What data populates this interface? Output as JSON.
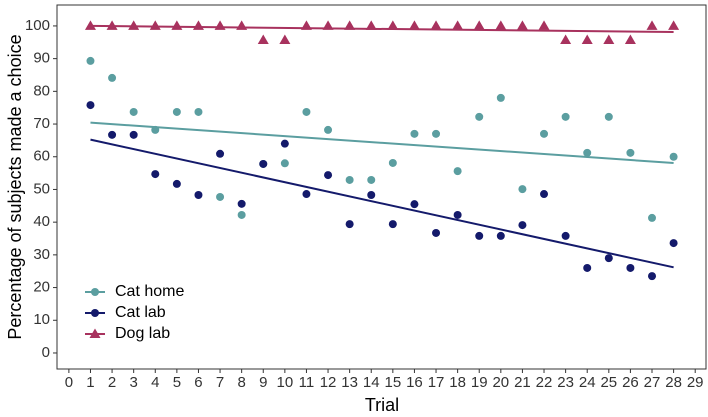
{
  "chart_data": {
    "type": "scatter",
    "x_label": "Trial",
    "y_label": "Percentage of subjects made a choice",
    "x": [
      1,
      2,
      3,
      4,
      5,
      6,
      7,
      8,
      9,
      10,
      11,
      12,
      13,
      14,
      15,
      16,
      17,
      18,
      19,
      20,
      21,
      22,
      23,
      24,
      25,
      26,
      27,
      28
    ],
    "series": [
      {
        "name": "Cat home",
        "color": "#5b9ea0",
        "marker": "circle",
        "values": [
          89.3,
          84.1,
          73.7,
          68.2,
          73.7,
          73.7,
          47.7,
          42.2,
          57.8,
          58,
          73.7,
          68.2,
          52.9,
          52.9,
          58.1,
          67,
          67,
          55.6,
          72.2,
          78,
          50.1,
          67,
          72.2,
          61.2,
          72.2,
          61.2,
          41.3,
          60
        ]
      },
      {
        "name": "Cat lab",
        "color": "#141a6b",
        "marker": "circle",
        "values": [
          75.8,
          66.7,
          66.7,
          54.7,
          51.7,
          48.3,
          60.9,
          45.6,
          57.8,
          64,
          48.6,
          54.4,
          39.4,
          48.3,
          39.4,
          45.5,
          36.7,
          42.2,
          35.8,
          35.8,
          39.1,
          48.6,
          35.8,
          26,
          29,
          26,
          23.5,
          33.6
        ]
      },
      {
        "name": "Dog lab",
        "color": "#a8325e",
        "marker": "triangle",
        "values": [
          100,
          100,
          100,
          100,
          100,
          100,
          100,
          100,
          95.7,
          95.7,
          100,
          100,
          100,
          100,
          100,
          100,
          100,
          100,
          100,
          100,
          100,
          100,
          95.7,
          95.7,
          95.7,
          95.7,
          100,
          100
        ]
      }
    ],
    "trend_lines": true,
    "xlim": [
      -0.55,
      29.5
    ],
    "xticks": [
      0,
      1,
      2,
      3,
      4,
      5,
      6,
      7,
      8,
      9,
      10,
      11,
      12,
      13,
      14,
      15,
      16,
      17,
      18,
      19,
      20,
      21,
      22,
      23,
      24,
      25,
      26,
      27,
      28,
      29
    ],
    "ylim": [
      -4.9,
      106.4
    ],
    "yticks": [
      0,
      10,
      20,
      30,
      40,
      50,
      60,
      70,
      80,
      90,
      100
    ],
    "legend": "bottom-left"
  }
}
